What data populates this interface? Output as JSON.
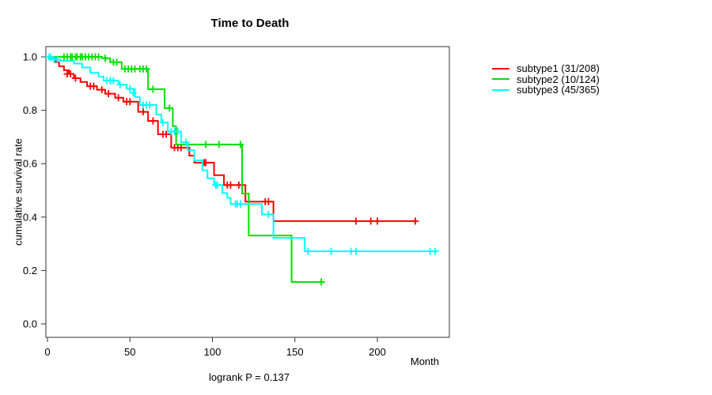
{
  "chart_data": {
    "type": "line",
    "subtype_plot": "kaplan-meier-survival",
    "title": "Time to Death",
    "xlabel": "Month",
    "ylabel": "cumulative survival rate",
    "annotation": "logrank P = 0.137",
    "xlim": [
      0,
      243
    ],
    "ylim": [
      0,
      1.0
    ],
    "grid": false,
    "legend_position": "right-outside",
    "x_ticks": [
      {
        "label": "0",
        "value": 0
      },
      {
        "label": "50",
        "value": 50
      },
      {
        "label": "100",
        "value": 100
      },
      {
        "label": "150",
        "value": 150
      },
      {
        "label": "200",
        "value": 200
      }
    ],
    "y_ticks": [
      {
        "label": "0.0",
        "value": 0.0
      },
      {
        "label": "0.2",
        "value": 0.2
      },
      {
        "label": "0.4",
        "value": 0.4
      },
      {
        "label": "0.6",
        "value": 0.6
      },
      {
        "label": "0.8",
        "value": 0.8
      },
      {
        "label": "1.0",
        "value": 1.0
      }
    ],
    "series": [
      {
        "name": "subtype1",
        "legend": "subtype1 (31/208)",
        "color": "#FF0000",
        "end_month": 223,
        "steps": [
          [
            0,
            1.0
          ],
          [
            2,
            0.995
          ],
          [
            5,
            0.98
          ],
          [
            7,
            0.965
          ],
          [
            10,
            0.95
          ],
          [
            13,
            0.936
          ],
          [
            16,
            0.92
          ],
          [
            20,
            0.906
          ],
          [
            24,
            0.89
          ],
          [
            30,
            0.877
          ],
          [
            35,
            0.862
          ],
          [
            41,
            0.847
          ],
          [
            46,
            0.832
          ],
          [
            55,
            0.794
          ],
          [
            61,
            0.76
          ],
          [
            67,
            0.71
          ],
          [
            75,
            0.66
          ],
          [
            86,
            0.63
          ],
          [
            89,
            0.604
          ],
          [
            101,
            0.557
          ],
          [
            107,
            0.52
          ],
          [
            120,
            0.458
          ],
          [
            137,
            0.385
          ]
        ],
        "censor_ticks": [
          [
            12,
            0.936
          ],
          [
            14,
            0.936
          ],
          [
            17,
            0.92
          ],
          [
            26,
            0.89
          ],
          [
            28,
            0.89
          ],
          [
            33,
            0.877
          ],
          [
            37,
            0.862
          ],
          [
            43,
            0.847
          ],
          [
            48,
            0.832
          ],
          [
            50,
            0.832
          ],
          [
            58,
            0.794
          ],
          [
            64,
            0.76
          ],
          [
            70,
            0.71
          ],
          [
            72,
            0.71
          ],
          [
            77,
            0.66
          ],
          [
            79,
            0.66
          ],
          [
            81,
            0.66
          ],
          [
            95,
            0.604
          ],
          [
            96,
            0.604
          ],
          [
            109,
            0.52
          ],
          [
            111,
            0.52
          ],
          [
            116,
            0.52
          ],
          [
            132,
            0.458
          ],
          [
            134,
            0.458
          ],
          [
            187,
            0.385
          ],
          [
            196,
            0.385
          ],
          [
            200,
            0.385
          ],
          [
            223,
            0.385
          ]
        ]
      },
      {
        "name": "subtype2",
        "legend": "subtype2 (10/124)",
        "color": "#00E100",
        "end_month": 166,
        "steps": [
          [
            0,
            1.0
          ],
          [
            33,
            0.995
          ],
          [
            38,
            0.98
          ],
          [
            45,
            0.955
          ],
          [
            61,
            0.879
          ],
          [
            71,
            0.808
          ],
          [
            76,
            0.74
          ],
          [
            78,
            0.672
          ],
          [
            118,
            0.488
          ],
          [
            122,
            0.331
          ],
          [
            148,
            0.157
          ]
        ],
        "censor_ticks": [
          [
            10,
            1.0
          ],
          [
            12,
            1.0
          ],
          [
            14,
            1.0
          ],
          [
            15,
            1.0
          ],
          [
            17,
            1.0
          ],
          [
            18,
            1.0
          ],
          [
            20,
            1.0
          ],
          [
            21,
            1.0
          ],
          [
            23,
            1.0
          ],
          [
            25,
            1.0
          ],
          [
            27,
            1.0
          ],
          [
            29,
            1.0
          ],
          [
            31,
            1.0
          ],
          [
            35,
            0.995
          ],
          [
            40,
            0.98
          ],
          [
            42,
            0.98
          ],
          [
            47,
            0.955
          ],
          [
            49,
            0.955
          ],
          [
            51,
            0.955
          ],
          [
            53,
            0.955
          ],
          [
            56,
            0.955
          ],
          [
            58,
            0.955
          ],
          [
            60,
            0.955
          ],
          [
            64,
            0.879
          ],
          [
            74,
            0.808
          ],
          [
            96,
            0.672
          ],
          [
            104,
            0.672
          ],
          [
            117,
            0.672
          ],
          [
            166,
            0.157
          ]
        ]
      },
      {
        "name": "subtype3",
        "legend": "subtype3 (45/365)",
        "color": "#00FFFF",
        "end_month": 237,
        "steps": [
          [
            0,
            1.0
          ],
          [
            1,
            0.997
          ],
          [
            3,
            0.993
          ],
          [
            5,
            0.99
          ],
          [
            8,
            0.985
          ],
          [
            16,
            0.975
          ],
          [
            21,
            0.96
          ],
          [
            26,
            0.94
          ],
          [
            31,
            0.926
          ],
          [
            34,
            0.911
          ],
          [
            43,
            0.896
          ],
          [
            48,
            0.88
          ],
          [
            53,
            0.85
          ],
          [
            56,
            0.82
          ],
          [
            66,
            0.784
          ],
          [
            69,
            0.754
          ],
          [
            73,
            0.72
          ],
          [
            81,
            0.68
          ],
          [
            85,
            0.65
          ],
          [
            89,
            0.612
          ],
          [
            94,
            0.575
          ],
          [
            97,
            0.545
          ],
          [
            101,
            0.52
          ],
          [
            106,
            0.49
          ],
          [
            109,
            0.472
          ],
          [
            111,
            0.449
          ],
          [
            130,
            0.41
          ],
          [
            137,
            0.322
          ],
          [
            156,
            0.272
          ]
        ],
        "censor_ticks": [
          [
            1,
            1.0
          ],
          [
            2,
            0.997
          ],
          [
            4,
            0.99
          ],
          [
            6,
            0.99
          ],
          [
            36,
            0.911
          ],
          [
            38,
            0.911
          ],
          [
            40,
            0.911
          ],
          [
            44,
            0.896
          ],
          [
            50,
            0.88
          ],
          [
            52,
            0.865
          ],
          [
            58,
            0.82
          ],
          [
            60,
            0.82
          ],
          [
            62,
            0.82
          ],
          [
            70,
            0.754
          ],
          [
            75,
            0.72
          ],
          [
            77,
            0.72
          ],
          [
            79,
            0.72
          ],
          [
            84,
            0.68
          ],
          [
            102,
            0.52
          ],
          [
            103,
            0.52
          ],
          [
            114,
            0.449
          ],
          [
            115,
            0.449
          ],
          [
            117,
            0.449
          ],
          [
            134,
            0.41
          ],
          [
            158,
            0.272
          ],
          [
            172,
            0.272
          ],
          [
            184,
            0.272
          ],
          [
            187,
            0.272
          ],
          [
            232,
            0.272
          ],
          [
            235,
            0.272
          ]
        ]
      }
    ],
    "colors": {
      "axis": "#333333",
      "text": "#000000",
      "background": "#ffffff"
    }
  }
}
